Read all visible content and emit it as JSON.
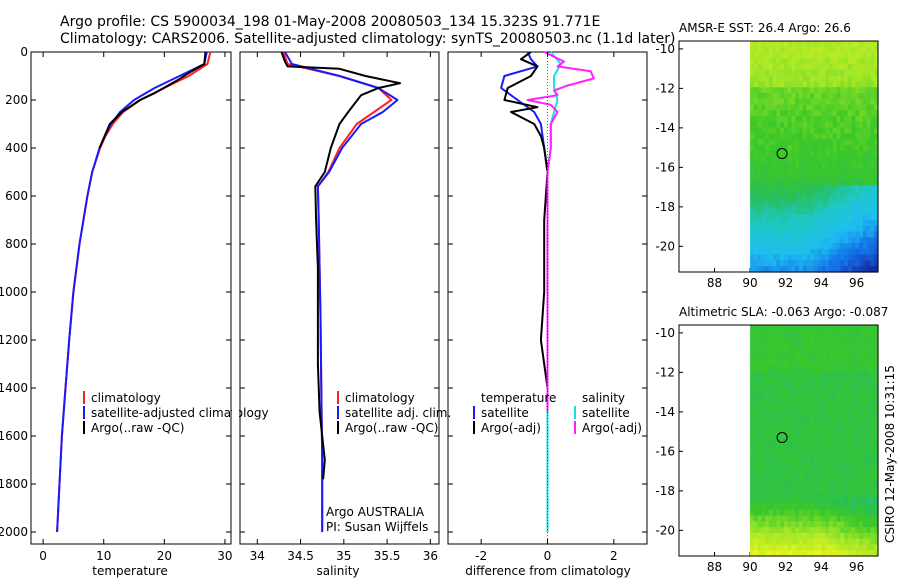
{
  "header": {
    "line1": "Argo profile: CS 5900034_198 01-May-2008 20080503_134 15.323S 91.771E",
    "line2": "Climatology: CARS2006. Satellite-adjusted climatology: synTS_20080503.nc (1.1d later)"
  },
  "side_stamp": "CSIRO 12-May-2008 10:31:15",
  "colors": {
    "climatology": "#ff2020",
    "satellite": "#1a1aff",
    "argo": "#000000",
    "sal_satellite": "#19e0e0",
    "sal_argo": "#ff22ff"
  },
  "chart_data": [
    {
      "type": "line",
      "id": "temperature",
      "xlabel": "temperature",
      "xlim": [
        -2,
        31
      ],
      "ylim": [
        2050,
        0
      ],
      "xticks": [
        0,
        10,
        20,
        30
      ],
      "yticks": [
        0,
        200,
        400,
        600,
        800,
        1000,
        1200,
        1400,
        1600,
        1800,
        2000
      ],
      "legend": [
        "climatology",
        "satellite-adjusted climatology",
        "Argo(..raw -QC)"
      ],
      "series": [
        {
          "name": "climatology",
          "color": "#ff2020",
          "depth": [
            0,
            50,
            100,
            150,
            200,
            250,
            300,
            350,
            400,
            500,
            600,
            800,
            1000,
            1200,
            1400,
            1600,
            1800,
            2000
          ],
          "values": [
            27.6,
            27.1,
            24.0,
            20.0,
            16.0,
            13.2,
            11.5,
            10.3,
            9.4,
            8.1,
            7.3,
            6.0,
            5.0,
            4.3,
            3.7,
            3.1,
            2.7,
            2.3
          ]
        },
        {
          "name": "satellite-adjusted climatology",
          "color": "#1a1aff",
          "depth": [
            0,
            50,
            100,
            150,
            200,
            250,
            300,
            350,
            400,
            500,
            600,
            800,
            1000,
            1200,
            1400,
            1600,
            1800,
            2000
          ],
          "values": [
            27.0,
            26.6,
            22.5,
            18.4,
            15.0,
            12.7,
            11.2,
            10.2,
            9.3,
            8.1,
            7.3,
            6.0,
            5.0,
            4.3,
            3.7,
            3.1,
            2.7,
            2.3
          ]
        },
        {
          "name": "Argo(..raw -QC)",
          "color": "#000000",
          "depth": [
            0,
            50,
            80,
            120,
            170,
            200,
            250,
            300,
            400
          ],
          "values": [
            26.8,
            26.6,
            24.5,
            22.0,
            18.5,
            16.0,
            13.0,
            11.0,
            9.3
          ]
        }
      ]
    },
    {
      "type": "line",
      "id": "salinity",
      "xlabel": "salinity",
      "xlim": [
        33.8,
        36.1
      ],
      "ylim": [
        2050,
        0
      ],
      "xticks": [
        34,
        34.5,
        35,
        35.5,
        36
      ],
      "legend": [
        "climatology",
        "satellite adj. clim.",
        "Argo(..raw -QC)"
      ],
      "annotations": [
        "Argo AUSTRALIA",
        "PI: Susan Wijffels"
      ],
      "series": [
        {
          "name": "climatology",
          "color": "#ff2020",
          "depth": [
            0,
            50,
            100,
            150,
            200,
            250,
            300,
            400,
            500,
            560,
            700,
            900,
            1100,
            1400,
            1700,
            2000
          ],
          "values": [
            34.3,
            34.35,
            34.95,
            35.4,
            35.55,
            35.35,
            35.15,
            34.95,
            34.82,
            34.7,
            34.71,
            34.72,
            34.73,
            34.74,
            34.75,
            34.75
          ]
        },
        {
          "name": "satellite adj. clim.",
          "color": "#1a1aff",
          "depth": [
            0,
            50,
            100,
            150,
            200,
            250,
            300,
            400,
            500,
            560,
            700,
            900,
            1100,
            1400,
            1700,
            2000
          ],
          "values": [
            34.32,
            34.4,
            34.95,
            35.4,
            35.62,
            35.45,
            35.2,
            34.98,
            34.83,
            34.7,
            34.71,
            34.72,
            34.73,
            34.74,
            34.75,
            34.75
          ]
        },
        {
          "name": "Argo(..raw -QC)",
          "color": "#000000",
          "depth": [
            0,
            40,
            60,
            70,
            100,
            130,
            150,
            180,
            250,
            300,
            400,
            500,
            560,
            700,
            900,
            1100,
            1300,
            1500,
            1700,
            1780
          ],
          "values": [
            34.28,
            34.32,
            34.35,
            34.95,
            35.25,
            35.65,
            35.4,
            35.2,
            35.05,
            34.95,
            34.85,
            34.78,
            34.67,
            34.68,
            34.7,
            34.7,
            34.7,
            34.72,
            34.78,
            34.76
          ]
        }
      ]
    },
    {
      "type": "line",
      "id": "difference",
      "xlabel": "difference from climatology",
      "xlim": [
        -3,
        3
      ],
      "ylim": [
        2050,
        0
      ],
      "xticks": [
        -2,
        0,
        2
      ],
      "legend_left_title": "temperature",
      "legend_right_title": "salinity",
      "legend": [
        "satellite",
        "Argo(-adj)",
        "satellite",
        "Argo(-adj)"
      ],
      "series": [
        {
          "name": "temperature satellite",
          "color": "#1a1aff",
          "depth": [
            0,
            30,
            60,
            100,
            150,
            200,
            250,
            300,
            400,
            500,
            700,
            1000,
            1500,
            2000
          ],
          "values": [
            -0.6,
            -0.5,
            -0.3,
            -1.3,
            -1.4,
            -0.9,
            -0.4,
            -0.2,
            -0.1,
            0.0,
            0.0,
            0.0,
            0.0,
            0.0
          ]
        },
        {
          "name": "temperature Argo(-adj)",
          "color": "#000000",
          "depth": [
            0,
            30,
            60,
            100,
            150,
            200,
            230,
            250,
            300,
            350,
            400,
            500,
            700,
            1000,
            1200,
            1300,
            1400
          ],
          "values": [
            -0.5,
            -0.8,
            -0.3,
            -0.5,
            -1.2,
            -1.3,
            -0.3,
            -1.1,
            -0.4,
            -0.2,
            -0.1,
            0.0,
            -0.1,
            -0.1,
            -0.2,
            -0.1,
            0.0
          ]
        },
        {
          "name": "salinity satellite",
          "color": "#19e0e0",
          "depth": [
            0,
            50,
            100,
            150,
            200,
            250,
            300,
            400,
            500,
            700,
            1000,
            1500,
            2000
          ],
          "values": [
            0.1,
            0.4,
            0.2,
            0.2,
            0.3,
            0.2,
            0.1,
            0.1,
            0.0,
            0.0,
            0.0,
            0.0,
            0.0
          ]
        },
        {
          "name": "salinity Argo(-adj)",
          "color": "#ff22ff",
          "depth": [
            0,
            40,
            60,
            80,
            110,
            140,
            160,
            180,
            200,
            220,
            250,
            300,
            400,
            500,
            700,
            1000,
            1500
          ],
          "values": [
            -0.1,
            0.5,
            0.3,
            1.3,
            1.4,
            0.6,
            0.2,
            0.3,
            -0.6,
            0.1,
            0.3,
            0.1,
            0.1,
            0.0,
            0.0,
            0.0,
            0.0
          ]
        }
      ]
    },
    {
      "type": "heatmap",
      "id": "sst-map",
      "title": "AMSR-E SST: 26.4 Argo: 26.6",
      "xlim": [
        86,
        97.2
      ],
      "ylim": [
        -21.3,
        -9.6
      ],
      "xticks": [
        88,
        90,
        92,
        94,
        96
      ],
      "yticks": [
        -10,
        -12,
        -14,
        -16,
        -18,
        -20
      ],
      "data_start_lon": 90,
      "marker": {
        "lon": 91.8,
        "lat": -15.3
      }
    },
    {
      "type": "heatmap",
      "id": "sla-map",
      "title": "Altimetric SLA: -0.063 Argo: -0.087",
      "xlim": [
        86,
        97.2
      ],
      "ylim": [
        -21.3,
        -9.6
      ],
      "xticks": [
        88,
        90,
        92,
        94,
        96
      ],
      "yticks": [
        -10,
        -12,
        -14,
        -16,
        -18,
        -20
      ],
      "data_start_lon": 90,
      "marker": {
        "lon": 91.8,
        "lat": -15.3
      }
    }
  ]
}
